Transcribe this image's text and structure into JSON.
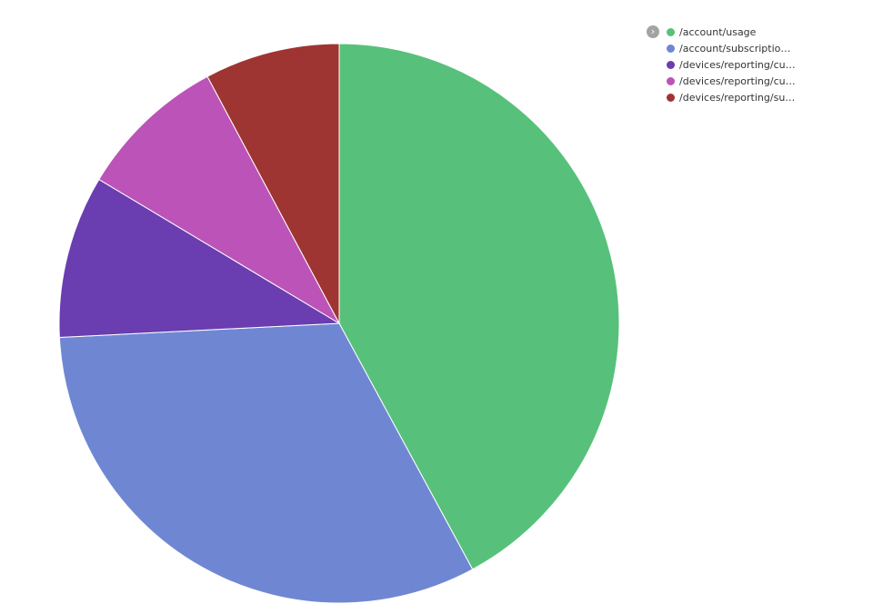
{
  "chart_data": {
    "type": "pie",
    "categories": [
      "/account/usage",
      "/account/subscriptio…",
      "/devices/reporting/cu…",
      "/devices/reporting/cu…",
      "/devices/reporting/su…"
    ],
    "values": [
      42.1,
      32.1,
      9.4,
      8.6,
      7.8
    ],
    "colors": [
      "#57c17b",
      "#6f87d3",
      "#6a3db0",
      "#bc53b8",
      "#9e3533"
    ],
    "legend_position": "top-right",
    "start": "top",
    "direction": "clockwise"
  },
  "legend": {
    "toggle_icon": "chevron-right-icon",
    "toggle_glyph": "›"
  }
}
